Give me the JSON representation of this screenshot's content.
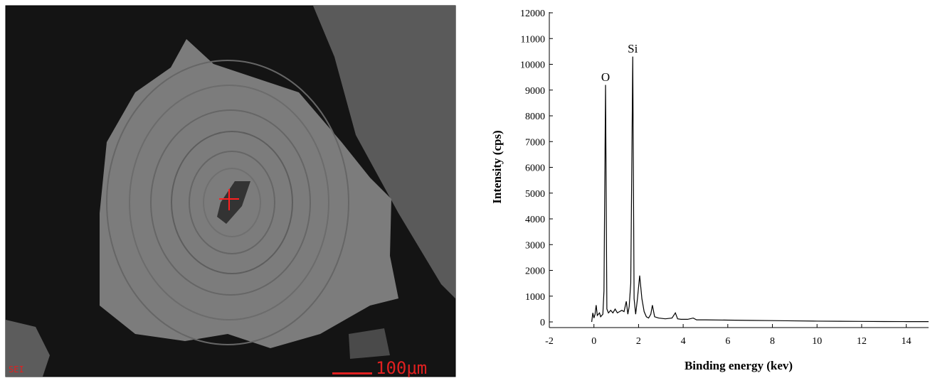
{
  "sem_image": {
    "label": "SEI",
    "scale_bar": "100μm"
  },
  "chart_data": {
    "type": "line",
    "x_label": "Binding energy (kev)",
    "y_label": "Intensity (cps)",
    "xlim": [
      -2,
      15
    ],
    "ylim": [
      -220,
      12000
    ],
    "xticks": [
      -2,
      0,
      2,
      4,
      6,
      8,
      10,
      12,
      14
    ],
    "yticks": [
      0,
      1000,
      2000,
      3000,
      4000,
      5000,
      6000,
      7000,
      8000,
      9000,
      10000,
      11000,
      12000
    ],
    "annotations": [
      {
        "text": "O",
        "x": 0.52,
        "y": 9350
      },
      {
        "text": "Si",
        "x": 1.74,
        "y": 10450
      }
    ],
    "x": [
      -0.1,
      -0.05,
      0,
      0.05,
      0.1,
      0.15,
      0.2,
      0.25,
      0.3,
      0.4,
      0.45,
      0.52,
      0.58,
      0.65,
      0.75,
      0.85,
      0.95,
      1.05,
      1.15,
      1.25,
      1.35,
      1.45,
      1.52,
      1.58,
      1.65,
      1.74,
      1.8,
      1.87,
      1.95,
      2.05,
      2.15,
      2.25,
      2.35,
      2.45,
      2.55,
      2.62,
      2.72,
      2.9,
      3.2,
      3.5,
      3.65,
      3.75,
      3.9,
      4.2,
      4.45,
      4.6,
      5,
      6,
      7,
      8,
      9,
      10,
      11,
      12,
      13,
      14,
      15
    ],
    "series": [
      {
        "color": "#000000",
        "values": [
          0,
          350,
          150,
          300,
          650,
          250,
          300,
          350,
          200,
          300,
          1200,
          9200,
          500,
          350,
          450,
          350,
          500,
          350,
          400,
          450,
          400,
          800,
          300,
          600,
          1500,
          10300,
          900,
          300,
          900,
          1800,
          900,
          400,
          200,
          150,
          300,
          650,
          200,
          150,
          120,
          150,
          350,
          120,
          100,
          100,
          150,
          80,
          80,
          70,
          60,
          50,
          40,
          30,
          25,
          20,
          15,
          12,
          10
        ]
      }
    ]
  }
}
